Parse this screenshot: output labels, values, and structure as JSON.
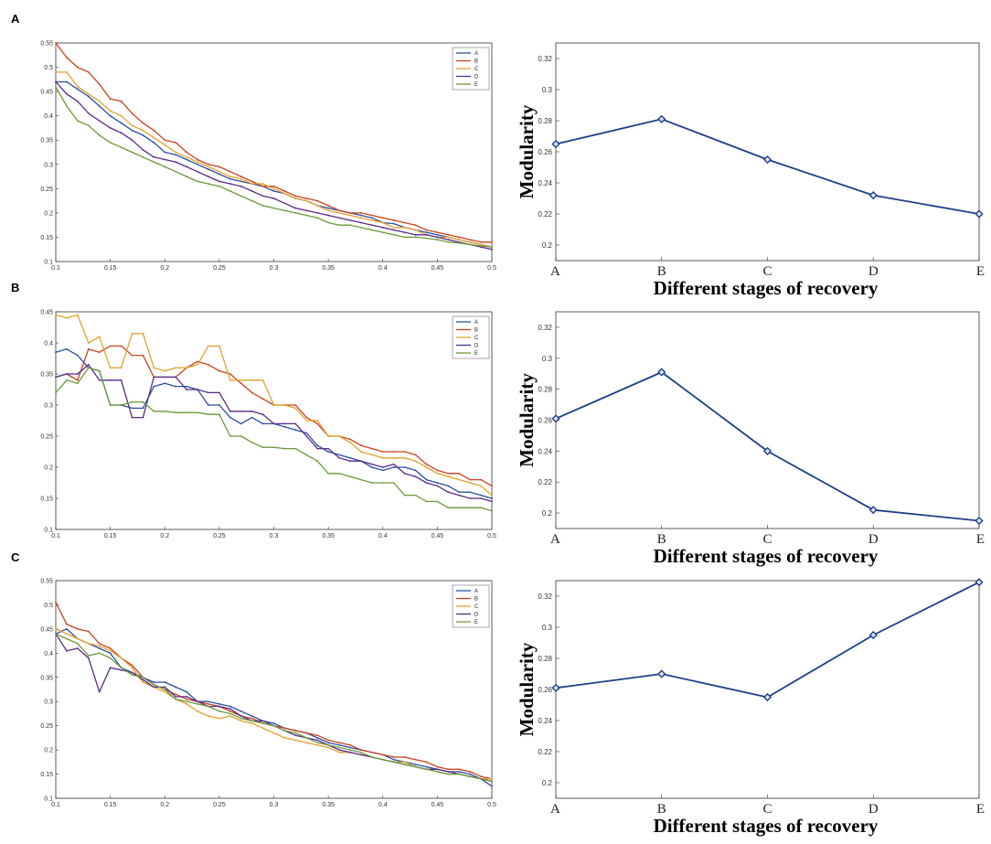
{
  "chart_data": [
    {
      "id": "A-left",
      "panel_label": "A",
      "type": "line",
      "x": [
        0.1,
        0.11,
        0.12,
        0.13,
        0.14,
        0.15,
        0.16,
        0.17,
        0.18,
        0.19,
        0.2,
        0.21,
        0.22,
        0.23,
        0.24,
        0.25,
        0.26,
        0.27,
        0.28,
        0.29,
        0.3,
        0.31,
        0.32,
        0.33,
        0.34,
        0.35,
        0.36,
        0.37,
        0.38,
        0.39,
        0.4,
        0.41,
        0.42,
        0.43,
        0.44,
        0.45,
        0.46,
        0.47,
        0.48,
        0.49,
        0.5
      ],
      "xlim": [
        0.1,
        0.5
      ],
      "ylim": [
        0.1,
        0.55
      ],
      "xticks": [
        "0.1",
        "0.15",
        "0.2",
        "0.25",
        "0.3",
        "0.35",
        "0.4",
        "0.45",
        "0.5"
      ],
      "yticks": [
        "0.1",
        "0.15",
        "0.2",
        "0.25",
        "0.3",
        "0.35",
        "0.4",
        "0.45",
        "0.5",
        "0.55"
      ],
      "legend": "top-right",
      "series": [
        {
          "name": "A",
          "color": "#2b4fa3",
          "values": [
            0.47,
            0.47,
            0.455,
            0.44,
            0.42,
            0.4,
            0.385,
            0.37,
            0.36,
            0.345,
            0.325,
            0.32,
            0.31,
            0.3,
            0.29,
            0.28,
            0.27,
            0.265,
            0.26,
            0.255,
            0.245,
            0.24,
            0.23,
            0.225,
            0.215,
            0.21,
            0.205,
            0.2,
            0.195,
            0.19,
            0.18,
            0.178,
            0.17,
            0.165,
            0.16,
            0.155,
            0.15,
            0.145,
            0.14,
            0.135,
            0.13
          ]
        },
        {
          "name": "B",
          "color": "#c8421e",
          "values": [
            0.55,
            0.52,
            0.5,
            0.49,
            0.465,
            0.435,
            0.43,
            0.405,
            0.385,
            0.37,
            0.35,
            0.345,
            0.325,
            0.31,
            0.3,
            0.295,
            0.285,
            0.275,
            0.265,
            0.255,
            0.255,
            0.245,
            0.235,
            0.23,
            0.225,
            0.215,
            0.205,
            0.2,
            0.2,
            0.195,
            0.19,
            0.185,
            0.18,
            0.175,
            0.165,
            0.16,
            0.155,
            0.15,
            0.145,
            0.14,
            0.14
          ]
        },
        {
          "name": "C",
          "color": "#e3a12e",
          "values": [
            0.49,
            0.49,
            0.46,
            0.445,
            0.43,
            0.41,
            0.4,
            0.38,
            0.37,
            0.355,
            0.34,
            0.325,
            0.315,
            0.305,
            0.295,
            0.285,
            0.275,
            0.27,
            0.26,
            0.26,
            0.25,
            0.24,
            0.23,
            0.225,
            0.215,
            0.205,
            0.2,
            0.195,
            0.19,
            0.185,
            0.18,
            0.17,
            0.17,
            0.165,
            0.155,
            0.15,
            0.15,
            0.145,
            0.14,
            0.135,
            0.13
          ]
        },
        {
          "name": "D",
          "color": "#5a2a8a",
          "values": [
            0.47,
            0.445,
            0.43,
            0.405,
            0.39,
            0.375,
            0.365,
            0.35,
            0.33,
            0.315,
            0.31,
            0.305,
            0.295,
            0.285,
            0.275,
            0.265,
            0.26,
            0.255,
            0.245,
            0.235,
            0.23,
            0.22,
            0.21,
            0.205,
            0.2,
            0.195,
            0.19,
            0.185,
            0.18,
            0.175,
            0.17,
            0.165,
            0.16,
            0.155,
            0.155,
            0.15,
            0.145,
            0.14,
            0.135,
            0.13,
            0.125
          ]
        },
        {
          "name": "E",
          "color": "#6a9a3a",
          "values": [
            0.46,
            0.42,
            0.39,
            0.38,
            0.36,
            0.345,
            0.335,
            0.325,
            0.315,
            0.305,
            0.295,
            0.285,
            0.275,
            0.265,
            0.26,
            0.255,
            0.245,
            0.235,
            0.225,
            0.215,
            0.21,
            0.205,
            0.2,
            0.195,
            0.19,
            0.18,
            0.175,
            0.175,
            0.17,
            0.165,
            0.16,
            0.155,
            0.15,
            0.15,
            0.148,
            0.145,
            0.14,
            0.138,
            0.135,
            0.132,
            0.13
          ]
        }
      ]
    },
    {
      "id": "A-right",
      "type": "line",
      "categories": [
        "A",
        "B",
        "C",
        "D",
        "E"
      ],
      "values": [
        0.265,
        0.281,
        0.255,
        0.232,
        0.22
      ],
      "ylabel": "Modularity",
      "xlabel": "Different stages of recovery",
      "ylim": [
        0.19,
        0.33
      ],
      "yticks": [
        "0.2",
        "0.22",
        "0.24",
        "0.26",
        "0.28",
        "0.3",
        "0.32"
      ],
      "color": "#1f3f8a"
    },
    {
      "id": "B-left",
      "panel_label": "B",
      "type": "line",
      "x": [
        0.1,
        0.11,
        0.12,
        0.13,
        0.14,
        0.15,
        0.16,
        0.17,
        0.18,
        0.19,
        0.2,
        0.21,
        0.22,
        0.23,
        0.24,
        0.25,
        0.26,
        0.27,
        0.28,
        0.29,
        0.3,
        0.31,
        0.32,
        0.33,
        0.34,
        0.35,
        0.36,
        0.37,
        0.38,
        0.39,
        0.4,
        0.41,
        0.42,
        0.43,
        0.44,
        0.45,
        0.46,
        0.47,
        0.48,
        0.49,
        0.5
      ],
      "xlim": [
        0.1,
        0.5
      ],
      "ylim": [
        0.1,
        0.45
      ],
      "xticks": [
        "0.1",
        "0.15",
        "0.2",
        "0.25",
        "0.3",
        "0.35",
        "0.4",
        "0.45",
        "0.5"
      ],
      "yticks": [
        "0.1",
        "0.15",
        "0.2",
        "0.25",
        "0.3",
        "0.35",
        "0.4",
        "0.45"
      ],
      "legend": "top-right",
      "series": [
        {
          "name": "A",
          "color": "#2b4fa3",
          "values": [
            0.385,
            0.39,
            0.38,
            0.36,
            0.355,
            0.3,
            0.3,
            0.295,
            0.295,
            0.33,
            0.335,
            0.33,
            0.33,
            0.325,
            0.3,
            0.3,
            0.28,
            0.27,
            0.28,
            0.27,
            0.27,
            0.265,
            0.26,
            0.255,
            0.235,
            0.225,
            0.22,
            0.215,
            0.21,
            0.2,
            0.195,
            0.2,
            0.2,
            0.195,
            0.18,
            0.175,
            0.17,
            0.16,
            0.16,
            0.155,
            0.15
          ]
        },
        {
          "name": "B",
          "color": "#c8421e",
          "values": [
            0.345,
            0.35,
            0.34,
            0.39,
            0.385,
            0.395,
            0.395,
            0.38,
            0.38,
            0.345,
            0.345,
            0.345,
            0.36,
            0.37,
            0.365,
            0.355,
            0.35,
            0.335,
            0.32,
            0.31,
            0.3,
            0.3,
            0.3,
            0.28,
            0.27,
            0.25,
            0.25,
            0.245,
            0.235,
            0.23,
            0.225,
            0.225,
            0.225,
            0.22,
            0.205,
            0.195,
            0.19,
            0.19,
            0.18,
            0.18,
            0.17
          ]
        },
        {
          "name": "C",
          "color": "#e3a12e",
          "values": [
            0.445,
            0.44,
            0.445,
            0.4,
            0.41,
            0.36,
            0.36,
            0.415,
            0.415,
            0.36,
            0.355,
            0.36,
            0.36,
            0.365,
            0.395,
            0.395,
            0.34,
            0.34,
            0.34,
            0.34,
            0.3,
            0.3,
            0.295,
            0.275,
            0.275,
            0.25,
            0.25,
            0.24,
            0.225,
            0.22,
            0.215,
            0.215,
            0.215,
            0.21,
            0.2,
            0.19,
            0.185,
            0.18,
            0.175,
            0.17,
            0.155
          ]
        },
        {
          "name": "D",
          "color": "#5a2a8a",
          "values": [
            0.345,
            0.35,
            0.35,
            0.365,
            0.34,
            0.34,
            0.34,
            0.28,
            0.28,
            0.345,
            0.345,
            0.345,
            0.325,
            0.325,
            0.32,
            0.32,
            0.29,
            0.29,
            0.29,
            0.285,
            0.27,
            0.27,
            0.27,
            0.25,
            0.23,
            0.23,
            0.215,
            0.21,
            0.21,
            0.205,
            0.2,
            0.205,
            0.19,
            0.185,
            0.175,
            0.17,
            0.16,
            0.155,
            0.15,
            0.15,
            0.145
          ]
        },
        {
          "name": "E",
          "color": "#6a9a3a",
          "values": [
            0.32,
            0.34,
            0.335,
            0.36,
            0.355,
            0.3,
            0.3,
            0.305,
            0.305,
            0.29,
            0.29,
            0.288,
            0.288,
            0.288,
            0.285,
            0.285,
            0.25,
            0.25,
            0.24,
            0.232,
            0.232,
            0.23,
            0.23,
            0.22,
            0.21,
            0.19,
            0.19,
            0.185,
            0.18,
            0.175,
            0.175,
            0.175,
            0.155,
            0.155,
            0.145,
            0.145,
            0.135,
            0.135,
            0.135,
            0.135,
            0.13
          ]
        }
      ]
    },
    {
      "id": "B-right",
      "type": "line",
      "categories": [
        "A",
        "B",
        "C",
        "D",
        "E"
      ],
      "values": [
        0.261,
        0.291,
        0.24,
        0.202,
        0.195
      ],
      "ylabel": "Modularity",
      "xlabel": "Different stages of recovery",
      "ylim": [
        0.19,
        0.33
      ],
      "yticks": [
        "0.2",
        "0.22",
        "0.24",
        "0.26",
        "0.28",
        "0.3",
        "0.32"
      ],
      "color": "#1f3f8a"
    },
    {
      "id": "C-left",
      "panel_label": "C",
      "type": "line",
      "x": [
        0.1,
        0.11,
        0.12,
        0.13,
        0.14,
        0.15,
        0.16,
        0.17,
        0.18,
        0.19,
        0.2,
        0.21,
        0.22,
        0.23,
        0.24,
        0.25,
        0.26,
        0.27,
        0.28,
        0.29,
        0.3,
        0.31,
        0.32,
        0.33,
        0.34,
        0.35,
        0.36,
        0.37,
        0.38,
        0.39,
        0.4,
        0.41,
        0.42,
        0.43,
        0.44,
        0.45,
        0.46,
        0.47,
        0.48,
        0.49,
        0.5
      ],
      "xlim": [
        0.1,
        0.5
      ],
      "ylim": [
        0.1,
        0.55
      ],
      "xticks": [
        "0.1",
        "0.15",
        "0.2",
        "0.25",
        "0.3",
        "0.35",
        "0.4",
        "0.45",
        "0.5"
      ],
      "yticks": [
        "0.1",
        "0.15",
        "0.2",
        "0.25",
        "0.3",
        "0.35",
        "0.4",
        "0.45",
        "0.5",
        "0.55"
      ],
      "legend": "top-right",
      "series": [
        {
          "name": "A",
          "color": "#2b4fa3",
          "values": [
            0.44,
            0.45,
            0.43,
            0.42,
            0.41,
            0.4,
            0.37,
            0.36,
            0.35,
            0.34,
            0.34,
            0.33,
            0.32,
            0.3,
            0.3,
            0.295,
            0.29,
            0.28,
            0.27,
            0.26,
            0.255,
            0.245,
            0.24,
            0.235,
            0.225,
            0.215,
            0.21,
            0.205,
            0.2,
            0.195,
            0.19,
            0.18,
            0.175,
            0.17,
            0.165,
            0.16,
            0.155,
            0.155,
            0.15,
            0.14,
            0.125
          ]
        },
        {
          "name": "B",
          "color": "#c8421e",
          "values": [
            0.505,
            0.46,
            0.45,
            0.445,
            0.42,
            0.41,
            0.39,
            0.375,
            0.35,
            0.335,
            0.325,
            0.315,
            0.305,
            0.3,
            0.295,
            0.29,
            0.28,
            0.27,
            0.265,
            0.255,
            0.25,
            0.245,
            0.24,
            0.235,
            0.23,
            0.22,
            0.215,
            0.21,
            0.2,
            0.195,
            0.19,
            0.185,
            0.185,
            0.18,
            0.175,
            0.165,
            0.16,
            0.16,
            0.155,
            0.145,
            0.14
          ]
        },
        {
          "name": "C",
          "color": "#e3a12e",
          "values": [
            0.45,
            0.44,
            0.43,
            0.42,
            0.415,
            0.405,
            0.39,
            0.37,
            0.34,
            0.33,
            0.32,
            0.305,
            0.295,
            0.28,
            0.27,
            0.265,
            0.27,
            0.26,
            0.255,
            0.245,
            0.235,
            0.225,
            0.22,
            0.215,
            0.21,
            0.205,
            0.195,
            0.195,
            0.19,
            0.185,
            0.18,
            0.175,
            0.175,
            0.165,
            0.16,
            0.155,
            0.15,
            0.15,
            0.145,
            0.14,
            0.14
          ]
        },
        {
          "name": "D",
          "color": "#5a2a8a",
          "values": [
            0.44,
            0.405,
            0.41,
            0.39,
            0.32,
            0.37,
            0.365,
            0.36,
            0.345,
            0.33,
            0.33,
            0.31,
            0.31,
            0.3,
            0.29,
            0.29,
            0.285,
            0.27,
            0.26,
            0.26,
            0.25,
            0.24,
            0.23,
            0.225,
            0.22,
            0.21,
            0.2,
            0.195,
            0.19,
            0.185,
            0.18,
            0.175,
            0.17,
            0.165,
            0.16,
            0.16,
            0.155,
            0.15,
            0.145,
            0.14,
            0.135
          ]
        },
        {
          "name": "E",
          "color": "#6a9a3a",
          "values": [
            0.44,
            0.43,
            0.42,
            0.395,
            0.4,
            0.39,
            0.37,
            0.355,
            0.35,
            0.335,
            0.325,
            0.305,
            0.3,
            0.295,
            0.29,
            0.28,
            0.275,
            0.265,
            0.26,
            0.255,
            0.25,
            0.24,
            0.235,
            0.225,
            0.215,
            0.21,
            0.205,
            0.2,
            0.195,
            0.185,
            0.18,
            0.175,
            0.17,
            0.165,
            0.16,
            0.155,
            0.15,
            0.15,
            0.145,
            0.14,
            0.135
          ]
        }
      ]
    },
    {
      "id": "C-right",
      "type": "line",
      "categories": [
        "A",
        "B",
        "C",
        "D",
        "E"
      ],
      "values": [
        0.261,
        0.27,
        0.255,
        0.295,
        0.329
      ],
      "ylabel": "Modularity",
      "xlabel": "Different stages of recovery",
      "ylim": [
        0.19,
        0.33
      ],
      "yticks": [
        "0.2",
        "0.22",
        "0.24",
        "0.26",
        "0.28",
        "0.3",
        "0.32"
      ],
      "color": "#1f3f8a"
    }
  ]
}
